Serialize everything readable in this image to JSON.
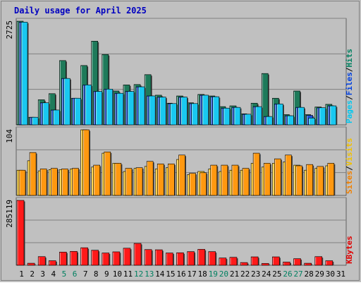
{
  "chart_data": {
    "type": "bar",
    "title": "Daily usage for April 2025",
    "x": {
      "days": [
        "1",
        "2",
        "3",
        "4",
        "5",
        "6",
        "7",
        "8",
        "9",
        "10",
        "11",
        "12",
        "13",
        "14",
        "15",
        "16",
        "17",
        "18",
        "19",
        "20",
        "21",
        "22",
        "23",
        "24",
        "25",
        "26",
        "27",
        "28",
        "29",
        "30",
        "31"
      ],
      "weekend_days": [
        5,
        6,
        12,
        13,
        19,
        20,
        26,
        27
      ]
    },
    "panels": [
      {
        "name": "hits-files-pages",
        "max_label": "2725",
        "ymax": 2725,
        "legend": [
          "Pages",
          "Files",
          "Hits"
        ],
        "legend_colors": [
          "#00c8f0",
          "#0040e0",
          "#008060"
        ],
        "series": [
          {
            "name": "Hits",
            "color": "#1e7a5a",
            "values": [
              2725,
              200,
              660,
              820,
              1690,
              700,
              1560,
              2200,
              1850,
              890,
              1050,
              1060,
              1320,
              780,
              570,
              760,
              580,
              800,
              760,
              480,
              500,
              290,
              570,
              1350,
              700,
              270,
              890,
              270,
              470,
              540,
              0
            ]
          },
          {
            "name": "Files",
            "color": "#1f4fd6",
            "values": [
              2700,
              200,
              580,
              390,
              1220,
              700,
              1050,
              880,
              940,
              830,
              880,
              1000,
              760,
              730,
              560,
              730,
              560,
              780,
              740,
              440,
              460,
              280,
              480,
              220,
              550,
              240,
              460,
              250,
              450,
              500,
              0
            ]
          },
          {
            "name": "Pages",
            "color": "#19c8f0",
            "values": [
              2700,
              200,
              580,
              390,
              1220,
              700,
              1050,
              880,
              940,
              830,
              880,
              1000,
              760,
              730,
              560,
              730,
              560,
              780,
              740,
              440,
              460,
              280,
              480,
              220,
              550,
              240,
              460,
              180,
              450,
              500,
              0
            ]
          }
        ]
      },
      {
        "name": "visits-sites",
        "max_label": "104",
        "ymax": 104,
        "legend": [
          "Sites",
          "Visits"
        ],
        "legend_colors": [
          "#f08000",
          "#f0c000"
        ],
        "series": [
          {
            "name": "Visits",
            "color": "#ffcc22",
            "values": [
              40,
              55,
              39,
              41,
              41,
              42,
              104,
              45,
              67,
              51,
              38,
              43,
              46,
              42,
              44,
              57,
              33,
              38,
              42,
              38,
              40,
              40,
              51,
              45,
              51,
              53,
              48,
              40,
              43,
              47,
              0
            ]
          },
          {
            "name": "Sites",
            "color": "#ff9810",
            "values": [
              40,
              68,
              42,
              43,
              42,
              43,
              104,
              48,
              69,
              51,
              43,
              44,
              54,
              50,
              50,
              64,
              35,
              36,
              48,
              48,
              48,
              43,
              67,
              51,
              58,
              64,
              47,
              49,
              46,
              51,
              0
            ]
          }
        ]
      },
      {
        "name": "kbytes",
        "max_label": "285119",
        "ymax": 285119,
        "legend": [
          "KBytes"
        ],
        "legend_colors": [
          "#e00000"
        ],
        "series": [
          {
            "name": "KBytes",
            "color": "#ff1a1a",
            "values": [
              285119,
              9000,
              38000,
              20000,
              58000,
              61000,
              77000,
              66000,
              54000,
              59000,
              75000,
              96000,
              69000,
              68000,
              54000,
              55000,
              60000,
              70000,
              60000,
              32000,
              35000,
              12000,
              37000,
              8000,
              37000,
              14000,
              29000,
              9000,
              38000,
              20000,
              0
            ]
          }
        ]
      }
    ]
  },
  "colors": {
    "background": "#c0c0c0",
    "grid": "#808080",
    "title": "#0000c0",
    "day_label": "#000000",
    "weekend_label": "#008060",
    "separator": "#000000"
  }
}
